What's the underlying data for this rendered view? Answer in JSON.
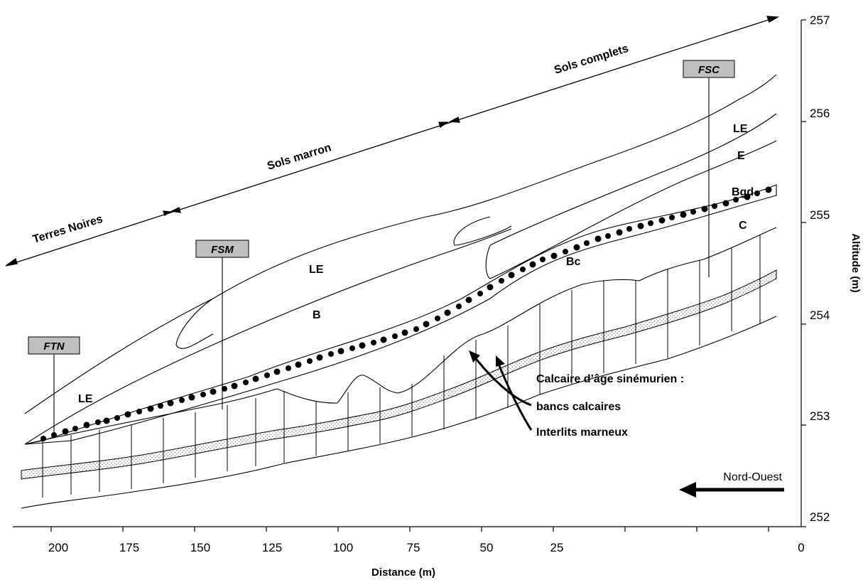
{
  "axes": {
    "xlabel": "Distance (m)",
    "ylabel": "Altitude (m)",
    "x_ticks": [
      "200",
      "175",
      "150",
      "125",
      "100",
      "75",
      "50",
      "25",
      "0"
    ],
    "y_ticks": [
      "257",
      "256",
      "255",
      "254",
      "253",
      "252"
    ]
  },
  "zones": {
    "terres_noires": "Terres Noires",
    "sols_marron": "Sols marron",
    "sols_complets": "Sols complets"
  },
  "pits": {
    "ftn": "FTN",
    "fsm": "FSM",
    "fsc": "FSC"
  },
  "horizons": {
    "le_left": "LE",
    "le_mid": "LE",
    "b": "B",
    "bc": "Bc",
    "le_right": "LE",
    "e": "E",
    "bgd": "Bgd",
    "c": "C"
  },
  "legend": {
    "calcaire": "Calcaire d’âge sinémurien :",
    "bancs": "bancs calcaires",
    "interlits": "Interlits marneux"
  },
  "direction": "Nord-Ouest"
}
